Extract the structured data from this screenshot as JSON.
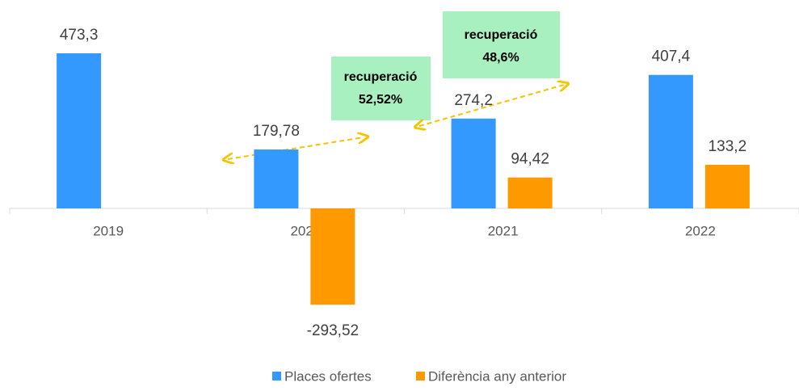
{
  "chart_data": {
    "type": "bar",
    "categories": [
      "2019",
      "2020",
      "2021",
      "2022"
    ],
    "series": [
      {
        "name": "Places ofertes",
        "color": "#3399ff",
        "values": [
          473.3,
          179.78,
          274.2,
          407.4
        ],
        "value_labels": [
          "473,3",
          "179,78",
          "274,2",
          "407,4"
        ]
      },
      {
        "name": "Diferència any anterior",
        "color": "#ff9900",
        "values": [
          null,
          -293.52,
          94.42,
          133.2
        ],
        "value_labels": [
          null,
          "-293,52",
          "94,42",
          "133,2"
        ]
      }
    ],
    "annotations": [
      {
        "lines": [
          "recuperació",
          "52,52%"
        ]
      },
      {
        "lines": [
          "recuperació",
          "48,6%"
        ]
      }
    ],
    "legend": "bottom"
  }
}
